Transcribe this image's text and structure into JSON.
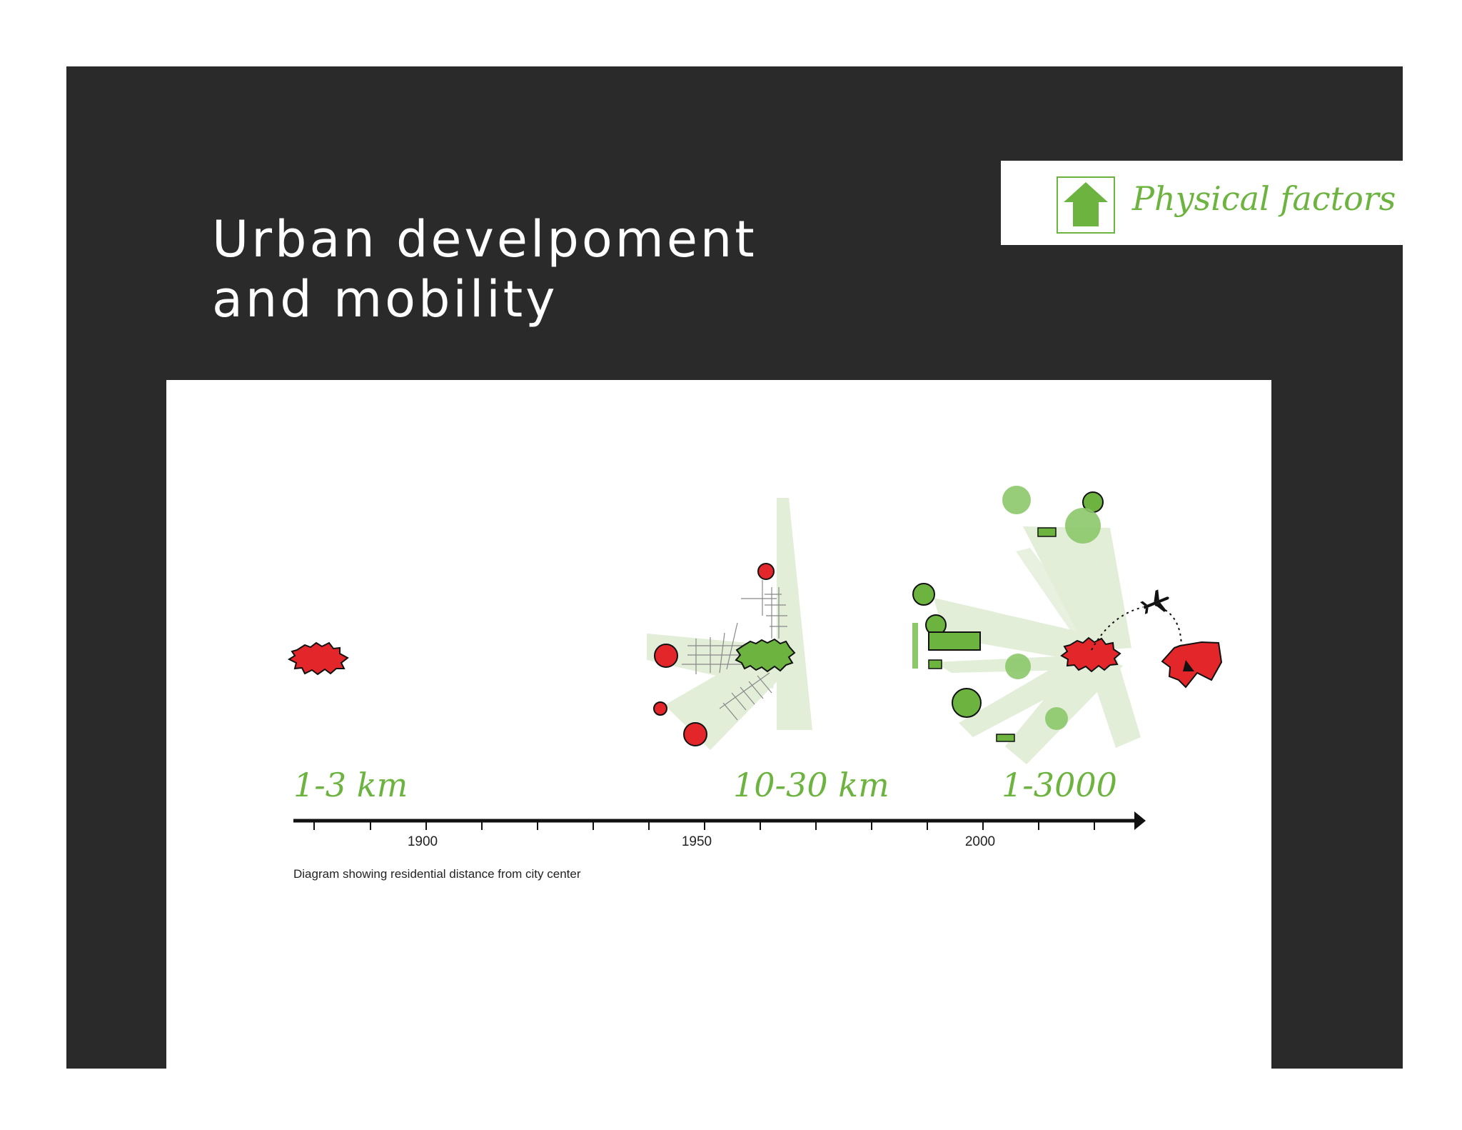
{
  "slide": {
    "title_lines": [
      "Urban develpoment",
      "and mobility"
    ],
    "badge": {
      "label": "Physical factors",
      "icon": "house-arrow-icon",
      "color": "#6cb33f"
    }
  },
  "diagram": {
    "distance_labels": [
      "1-3 km",
      "10-30 km",
      "1-3000"
    ],
    "timeline_years": [
      "1900",
      "1950",
      "2000"
    ],
    "caption": "Diagram showing residential distance from city center",
    "colors": {
      "city_red": "#e3262a",
      "city_green": "#6cb33f",
      "light_green": "#e2eed8",
      "pale_green": "#8cc76a"
    },
    "icons": [
      "airplane-icon"
    ]
  }
}
